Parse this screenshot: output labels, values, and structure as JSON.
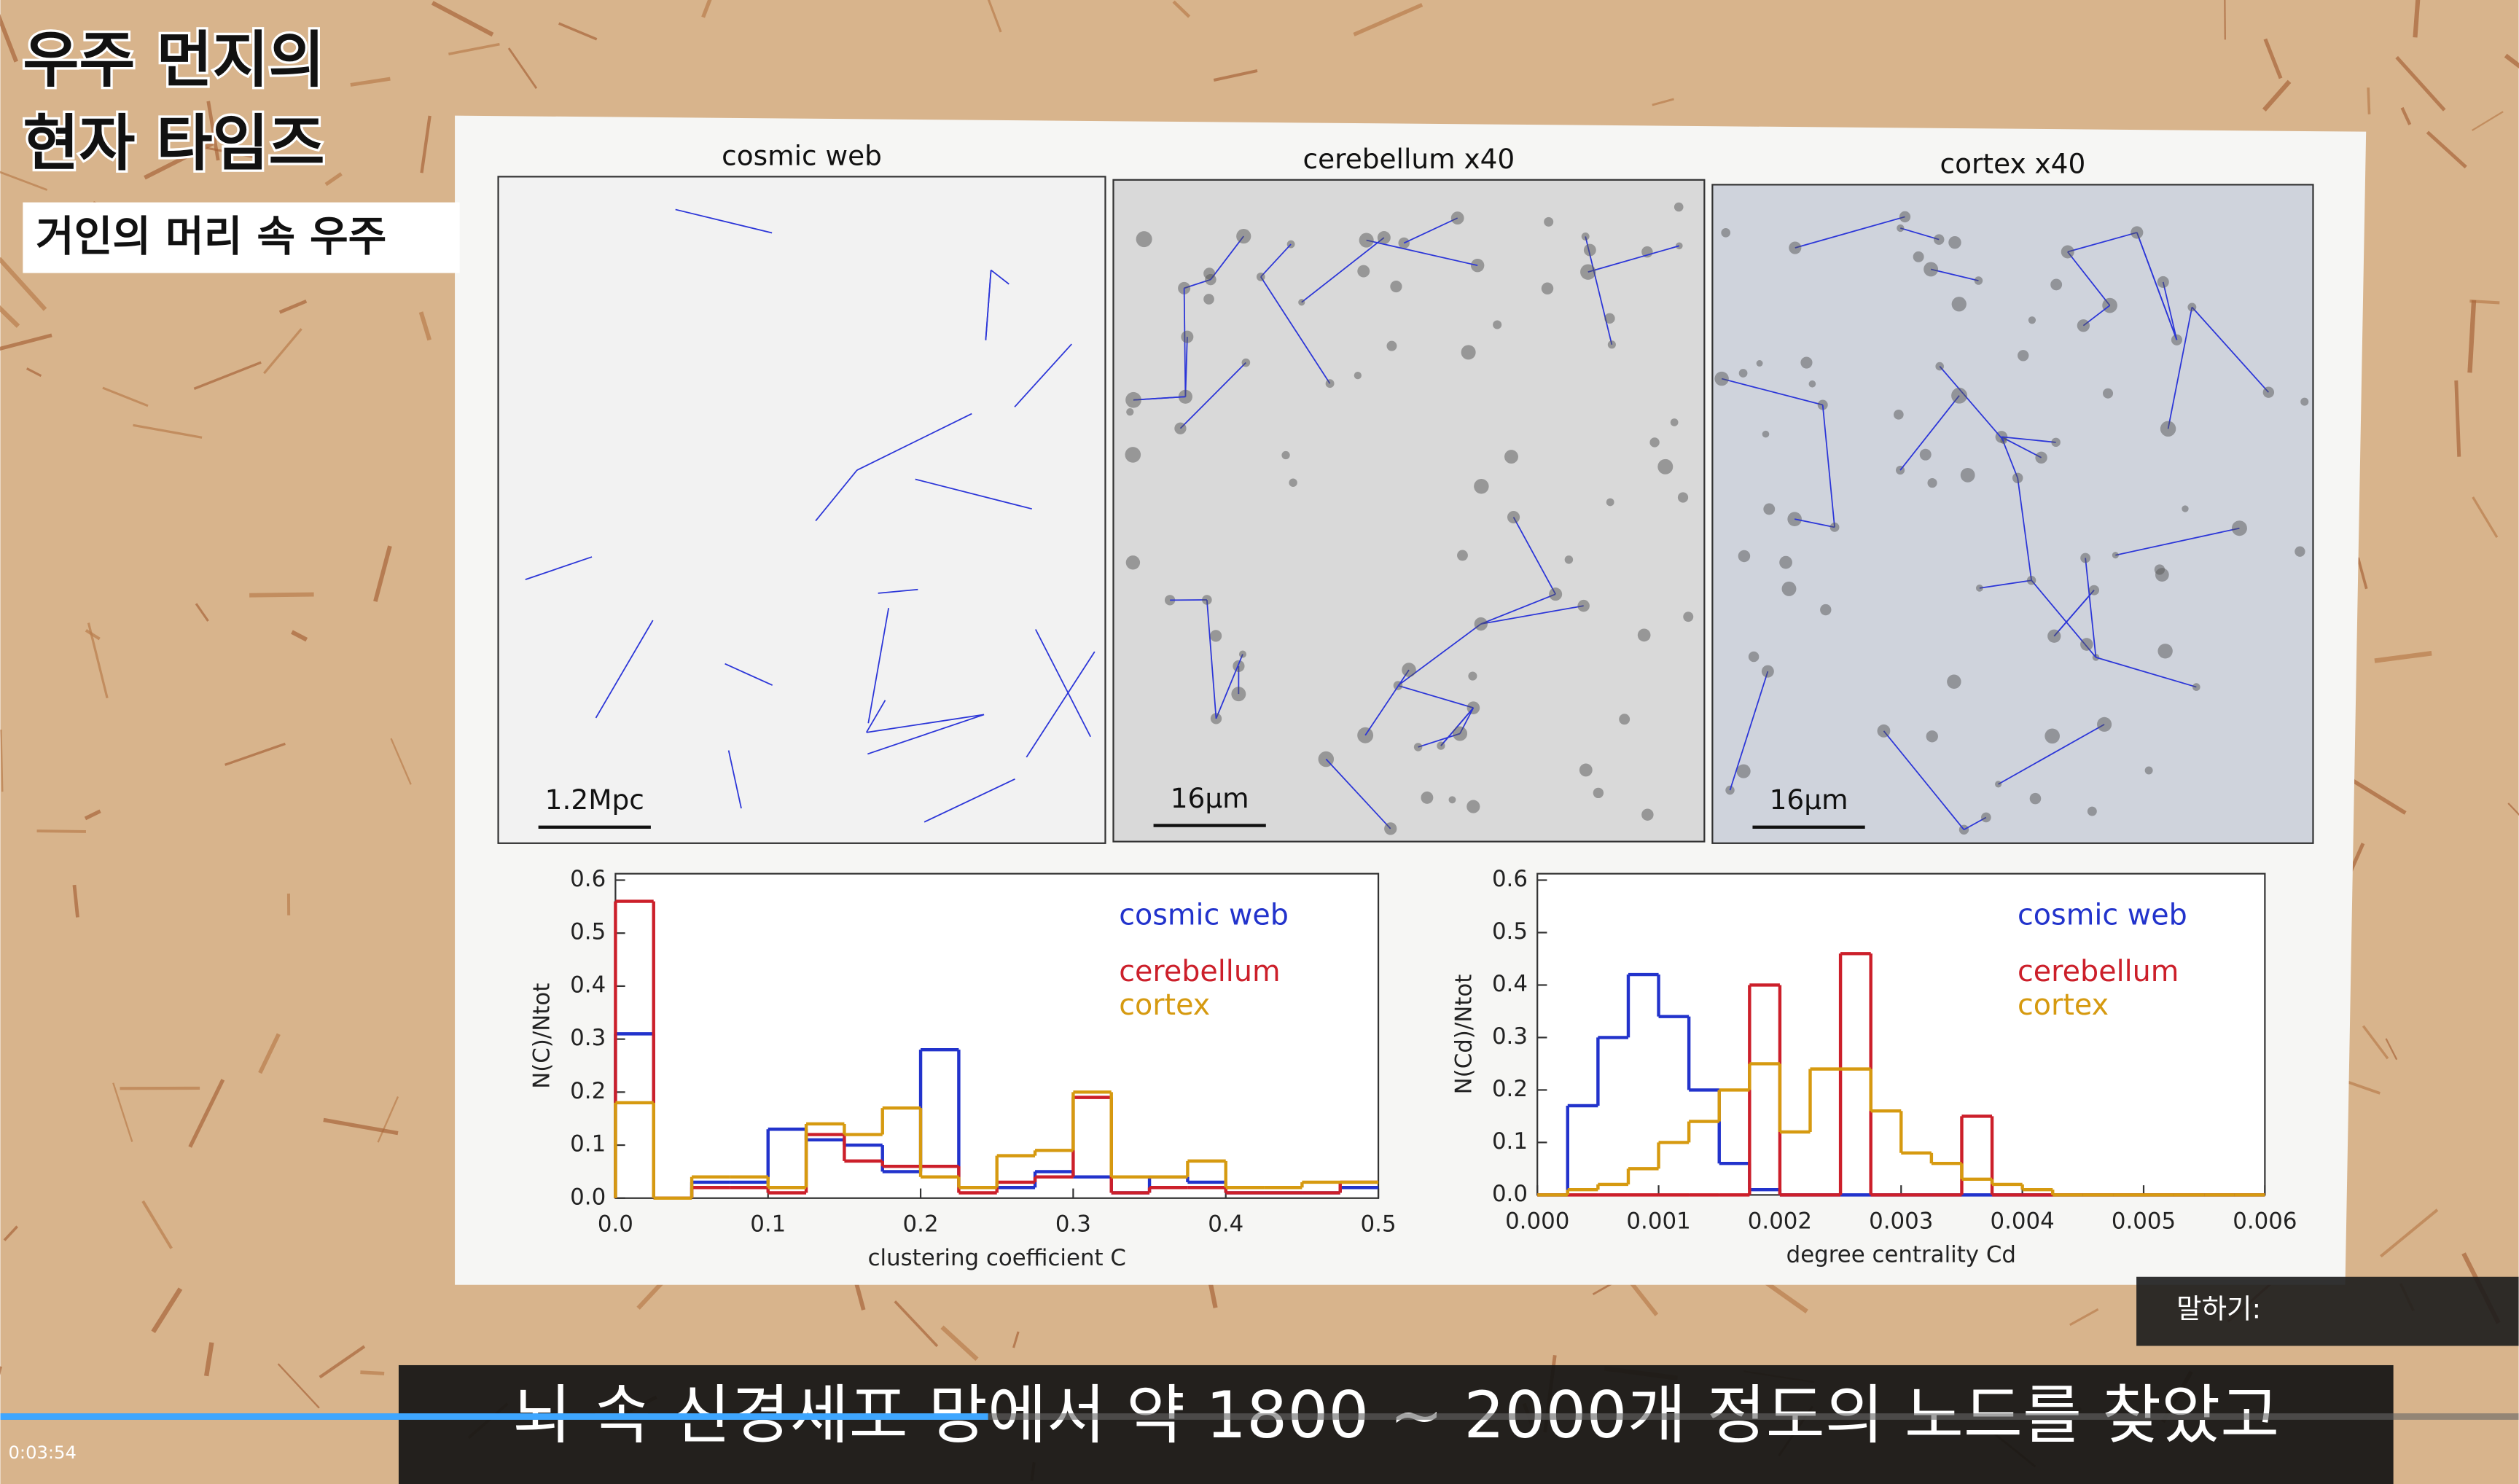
{
  "overlay": {
    "title_lines": [
      "우주 먼지의",
      "현자 타임즈"
    ],
    "subtitle": "거인의 머리 속 우주"
  },
  "panels": [
    {
      "label": "cosmic web",
      "scale": "1.2Mpc"
    },
    {
      "label": "cerebellum x40",
      "scale": "16μm"
    },
    {
      "label": "cortex x40",
      "scale": "16μm"
    }
  ],
  "chart_data": [
    {
      "type": "histogram",
      "xlabel": "clustering coefficient C",
      "ylabel": "N(C)/Ntot",
      "legend": "upper right",
      "bins": [
        0,
        0.025,
        0.05,
        0.075,
        0.1,
        0.125,
        0.15,
        0.175,
        0.2,
        0.225,
        0.25,
        0.275,
        0.3,
        0.325,
        0.35,
        0.375,
        0.4,
        0.425,
        0.45,
        0.475,
        0.5
      ],
      "series": [
        {
          "name": "cosmic web",
          "color": "#2233cc",
          "values": [
            0.31,
            0,
            0.03,
            0.03,
            0.13,
            0.11,
            0.1,
            0.05,
            0.28,
            0.02,
            0.02,
            0.05,
            0.04,
            0.01,
            0.04,
            0.03,
            0.01,
            0.01,
            0.01,
            0.02
          ]
        },
        {
          "name": "cerebellum",
          "color": "#cc1f2a",
          "values": [
            0.56,
            0,
            0.02,
            0.02,
            0.01,
            0.12,
            0.07,
            0.06,
            0.06,
            0.01,
            0.03,
            0.04,
            0.19,
            0.01,
            0.02,
            0.02,
            0.01,
            0.01,
            0.01,
            0.03
          ]
        },
        {
          "name": "cortex",
          "color": "#d69a10",
          "values": [
            0.18,
            0,
            0.04,
            0.04,
            0.02,
            0.14,
            0.12,
            0.17,
            0.04,
            0.02,
            0.08,
            0.09,
            0.2,
            0.04,
            0.04,
            0.07,
            0.02,
            0.02,
            0.03,
            0.03
          ]
        }
      ],
      "xlim": [
        0,
        0.5
      ],
      "ylim": [
        0,
        0.6
      ],
      "xticks": [
        {
          "value": 0,
          "label": "0.0"
        },
        0.1,
        0.2,
        0.3,
        0.4,
        0.5
      ],
      "yticks": [
        {
          "value": 0,
          "label": "0.0"
        },
        0.1,
        0.2,
        0.3,
        0.4,
        0.5,
        0.6
      ]
    },
    {
      "type": "histogram",
      "xlabel": "degree centrality Cd",
      "ylabel": "N(Cd)/Ntot",
      "legend": "upper right",
      "bins": [
        0,
        0.00025,
        0.0005,
        0.00075,
        0.001,
        0.00125,
        0.0015,
        0.00175,
        0.002,
        0.00225,
        0.0025,
        0.00275,
        0.003,
        0.00325,
        0.0035,
        0.00375,
        0.004,
        0.00425,
        0.0045,
        0.00475,
        0.005,
        0.00525,
        0.0055,
        0.00575,
        0.006
      ],
      "series": [
        {
          "name": "cosmic web",
          "color": "#2233cc",
          "values": [
            0,
            0.17,
            0.3,
            0.42,
            0.34,
            0.2,
            0.06,
            0.01,
            0,
            0,
            0,
            0,
            0,
            0,
            0,
            0,
            0,
            0,
            0,
            0,
            0,
            0,
            0,
            0
          ]
        },
        {
          "name": "cerebellum",
          "color": "#cc1f2a",
          "values": [
            0,
            0,
            0,
            0,
            0,
            0,
            0,
            0.4,
            0,
            0,
            0.46,
            0,
            0,
            0,
            0.15,
            0,
            0,
            0,
            0,
            0,
            0,
            0,
            0,
            0
          ]
        },
        {
          "name": "cortex",
          "color": "#d69a10",
          "values": [
            0,
            0.01,
            0.02,
            0.05,
            0.1,
            0.14,
            0.2,
            0.25,
            0.12,
            0.24,
            0.24,
            0.16,
            0.08,
            0.06,
            0.03,
            0.02,
            0.01,
            0,
            0,
            0,
            0,
            0,
            0,
            0
          ]
        }
      ],
      "xlim": [
        0,
        0.006
      ],
      "ylim": [
        0,
        0.6
      ],
      "xticks": [
        {
          "value": 0,
          "label": "0.000"
        },
        {
          "value": 0.001,
          "label": "0.001"
        },
        {
          "value": 0.002,
          "label": "0.002"
        },
        {
          "value": 0.003,
          "label": "0.003"
        },
        {
          "value": 0.004,
          "label": "0.004"
        },
        {
          "value": 0.005,
          "label": "0.005"
        },
        {
          "value": 0.006,
          "label": "0.006"
        }
      ],
      "yticks": [
        {
          "value": 0,
          "label": "0.0"
        },
        0.1,
        0.2,
        0.3,
        0.4,
        0.5,
        0.6
      ]
    }
  ],
  "player": {
    "caption": "뇌 속 신경세포 망에서 약 1800 ~ 2000개 정도의 노드를 찾았고",
    "speak_label": "말하기:",
    "time": "0:03:54"
  }
}
